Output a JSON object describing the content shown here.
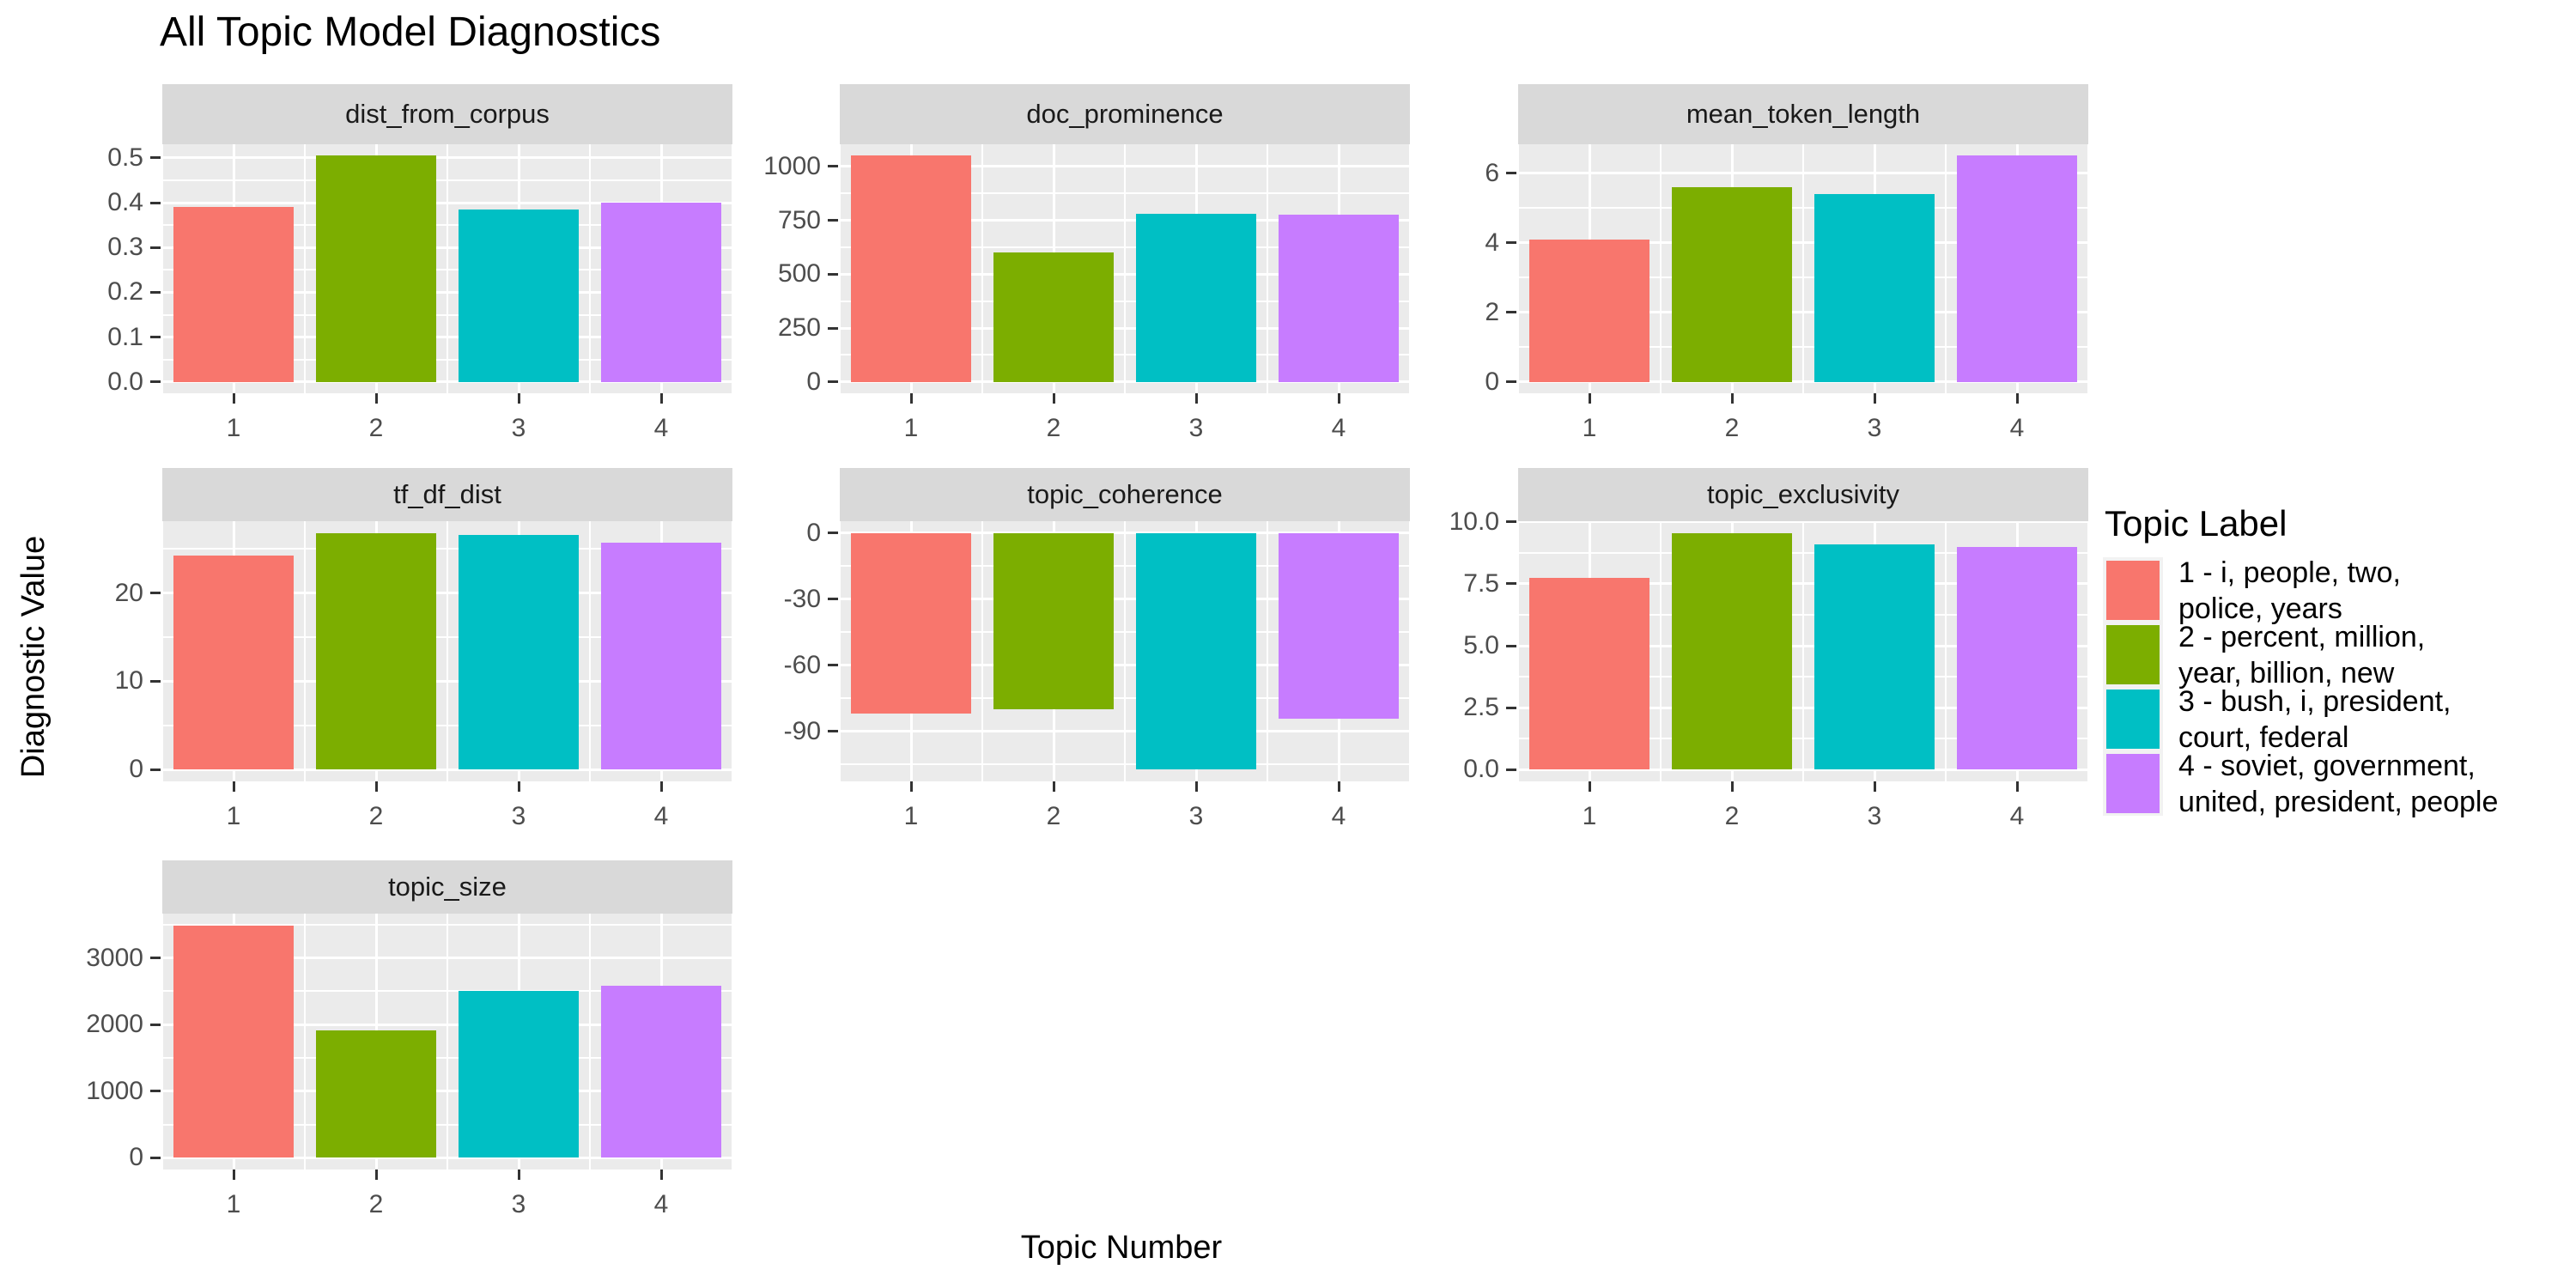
{
  "chart_data": {
    "type": "bar",
    "title": "All Topic Model Diagnostics",
    "xlabel": "Topic Number",
    "ylabel": "Diagnostic Value",
    "categories": [
      "1",
      "2",
      "3",
      "4"
    ],
    "palette": [
      "#F8766D",
      "#7CAE00",
      "#00BFC4",
      "#C77CFF"
    ],
    "grid": "on",
    "legend_position": "right",
    "facets": [
      {
        "name": "dist_from_corpus",
        "values": [
          0.39,
          0.505,
          0.385,
          0.4
        ],
        "ylim": [
          -0.0253,
          0.5303
        ],
        "tick_values": [
          0.0,
          0.1,
          0.2,
          0.3,
          0.4,
          0.5
        ],
        "tick_labels": [
          "0.0",
          "0.1",
          "0.2",
          "0.3",
          "0.4",
          "0.5"
        ]
      },
      {
        "name": "doc_prominence",
        "values": [
          1050,
          600,
          780,
          775
        ],
        "ylim": [
          -52.5,
          1102.5
        ],
        "tick_values": [
          0,
          250,
          500,
          750,
          1000
        ],
        "tick_labels": [
          "0",
          "250",
          "500",
          "750",
          "1000"
        ]
      },
      {
        "name": "mean_token_length",
        "values": [
          4.1,
          5.6,
          5.4,
          6.5
        ],
        "ylim": [
          -0.33,
          6.83
        ],
        "tick_values": [
          0,
          2,
          4,
          6
        ],
        "tick_labels": [
          "0",
          "2",
          "4",
          "6"
        ]
      },
      {
        "name": "tf_df_dist",
        "values": [
          24.2,
          26.8,
          26.6,
          25.7
        ],
        "ylim": [
          -1.34,
          28.14
        ],
        "tick_values": [
          0,
          10,
          20
        ],
        "tick_labels": [
          "0",
          "10",
          "20"
        ]
      },
      {
        "name": "topic_coherence",
        "values": [
          -82,
          -80,
          -107,
          -84
        ],
        "ylim": [
          -112.6,
          5.36
        ],
        "tick_values": [
          -90,
          -60,
          -30,
          0
        ],
        "tick_labels": [
          "-90",
          "-60",
          "-30",
          "0"
        ]
      },
      {
        "name": "topic_exclusivity",
        "values": [
          7.75,
          9.55,
          9.1,
          9.0
        ],
        "ylim": [
          -0.48,
          10.03
        ],
        "tick_values": [
          0,
          2.5,
          5,
          7.5,
          10
        ],
        "tick_labels": [
          "0.0",
          "2.5",
          "5.0",
          "7.5",
          "10.0"
        ]
      },
      {
        "name": "topic_size",
        "values": [
          3490,
          1910,
          2510,
          2580
        ],
        "ylim": [
          -174.5,
          3664.5
        ],
        "tick_values": [
          0,
          1000,
          2000,
          3000
        ],
        "tick_labels": [
          "0",
          "1000",
          "2000",
          "3000"
        ]
      }
    ],
    "legend": {
      "title": "Topic Label",
      "entries": [
        {
          "label_lines": [
            "1 - i, people, two,",
            "police, years"
          ],
          "color": "#F8766D"
        },
        {
          "label_lines": [
            "2 - percent, million,",
            "year, billion, new"
          ],
          "color": "#7CAE00"
        },
        {
          "label_lines": [
            "3 - bush, i, president,",
            "court, federal"
          ],
          "color": "#00BFC4"
        },
        {
          "label_lines": [
            "4 - soviet, government,",
            "united, president, people"
          ],
          "color": "#C77CFF"
        }
      ]
    }
  },
  "theme": {
    "panel_bg": "#EBEBEB",
    "strip_bg": "#D9D9D9",
    "grid_color": "#FFFFFF",
    "axis_text_color": "#4D4D4D",
    "tick_mark_color": "#333333",
    "title_color": "#000000",
    "legend_key_bg": "#F2F2F2"
  }
}
